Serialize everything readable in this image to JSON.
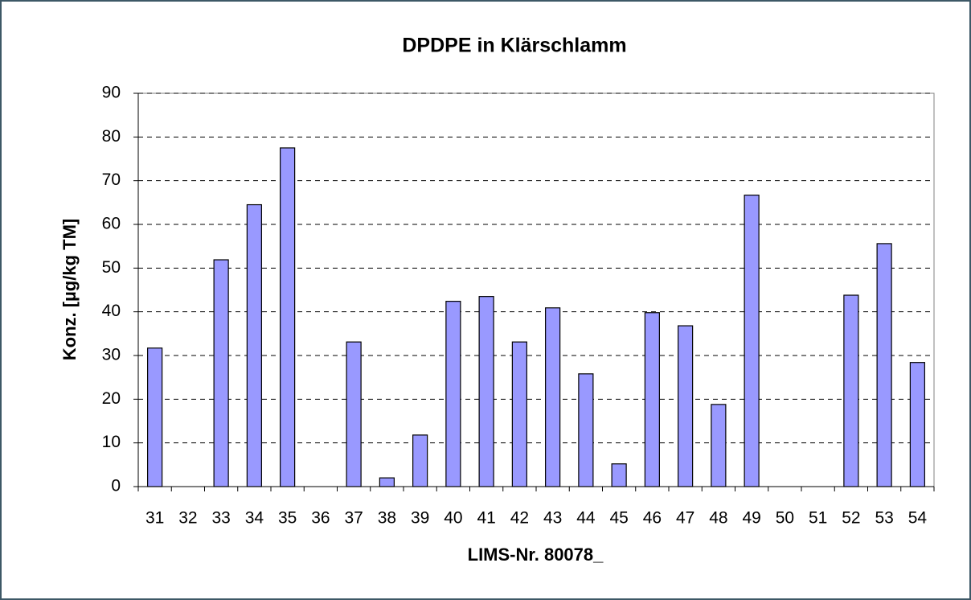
{
  "chart_data": {
    "type": "bar",
    "title": "DPDPE in Klärschlamm",
    "x_label": "LIMS-Nr. 80078_",
    "y_label": "Konz. [µg/kg TM]",
    "categories": [
      "31",
      "32",
      "33",
      "34",
      "35",
      "36",
      "37",
      "38",
      "39",
      "40",
      "41",
      "42",
      "43",
      "44",
      "45",
      "46",
      "47",
      "48",
      "49",
      "50",
      "51",
      "52",
      "53",
      "54"
    ],
    "values": [
      31.7,
      0,
      51.9,
      64.5,
      77.5,
      0,
      33.1,
      2.0,
      11.8,
      42.4,
      43.5,
      33.1,
      40.9,
      25.8,
      5.2,
      39.8,
      36.8,
      18.8,
      66.7,
      0,
      0,
      43.8,
      55.6,
      28.4
    ],
    "color": "#9999ff",
    "ylim": [
      0,
      90
    ],
    "yticks": [
      0,
      10,
      20,
      30,
      40,
      50,
      60,
      70,
      80,
      90
    ],
    "grid": true
  }
}
